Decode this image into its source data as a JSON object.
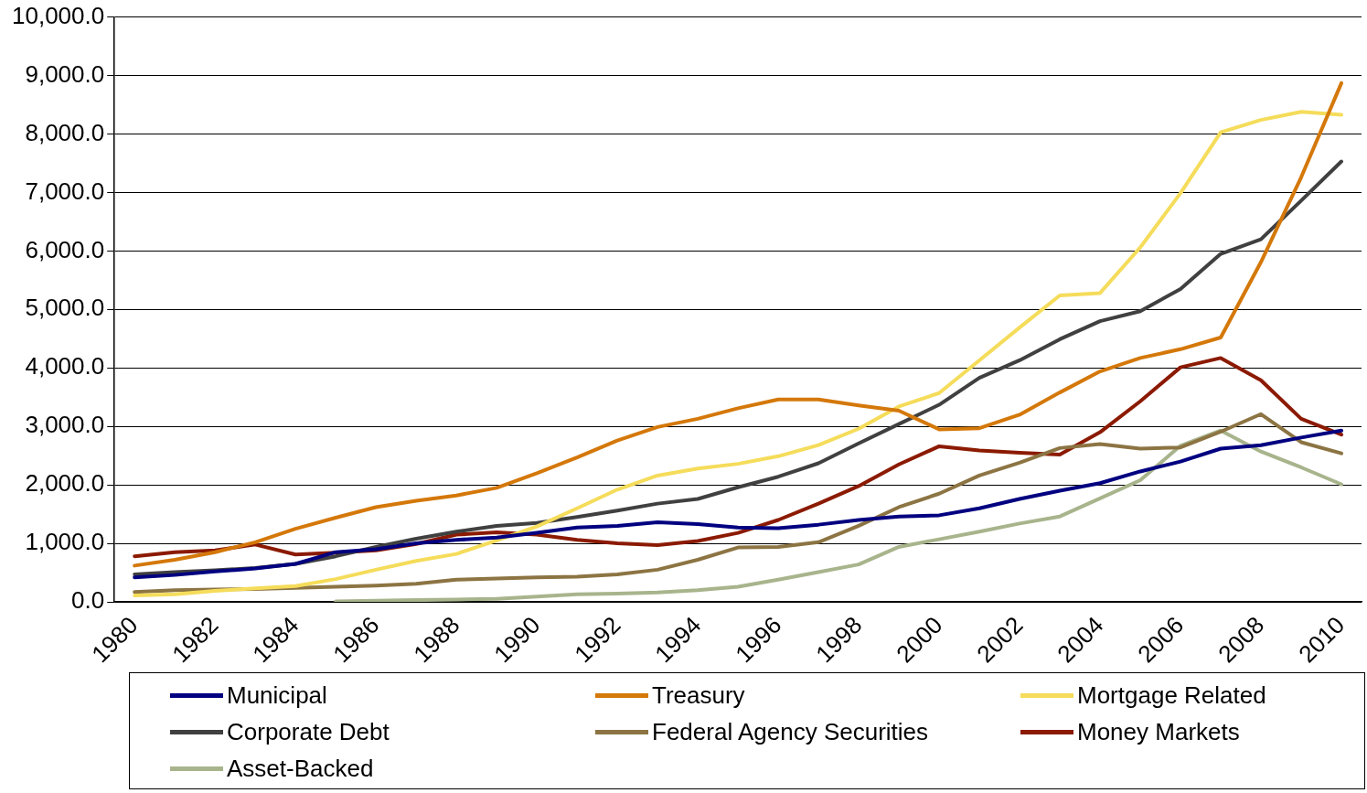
{
  "chart_data": {
    "type": "line",
    "categories": [
      "1980",
      null,
      "1982",
      null,
      "1984",
      null,
      "1986",
      null,
      "1988",
      null,
      "1990",
      null,
      "1992",
      null,
      "1994",
      null,
      "1996",
      null,
      "1998",
      null,
      "2000",
      null,
      "2002",
      null,
      "2004",
      null,
      "2006",
      null,
      "2008",
      null,
      "2010"
    ],
    "ylim": [
      0,
      10000
    ],
    "yticks": [
      {
        "value": 0,
        "label": "0.0"
      },
      {
        "value": 1000,
        "label": "1,000.0"
      },
      {
        "value": 2000,
        "label": "2,000.0"
      },
      {
        "value": 3000,
        "label": "3,000.0"
      },
      {
        "value": 4000,
        "label": "4,000.0"
      },
      {
        "value": 5000,
        "label": "5,000.0"
      },
      {
        "value": 6000,
        "label": "6,000.0"
      },
      {
        "value": 7000,
        "label": "7,000.0"
      },
      {
        "value": 8000,
        "label": "8,000.0"
      },
      {
        "value": 9000,
        "label": "9,000.0"
      },
      {
        "value": 10000,
        "label": "10,000.0"
      }
    ],
    "grid": "y",
    "legend": "bottom",
    "marker": "none",
    "line_style": "solid",
    "series": [
      {
        "name": "Municipal",
        "color": "#000080",
        "values": [
          420,
          460,
          520,
          570,
          650,
          850,
          900,
          1000,
          1060,
          1100,
          1180,
          1270,
          1300,
          1360,
          1330,
          1270,
          1260,
          1320,
          1400,
          1460,
          1480,
          1600,
          1760,
          1900,
          2030,
          2230,
          2400,
          2620,
          2680,
          2810,
          2930
        ]
      },
      {
        "name": "Treasury",
        "color": "#d4780a",
        "values": [
          620,
          720,
          850,
          1020,
          1250,
          1440,
          1620,
          1730,
          1820,
          1950,
          2200,
          2470,
          2760,
          2990,
          3130,
          3310,
          3460,
          3460,
          3360,
          3270,
          2950,
          2970,
          3200,
          3580,
          3940,
          4170,
          4320,
          4520,
          5810,
          7260,
          8870
        ]
      },
      {
        "name": "Mortgage Related",
        "color": "#f5dc5a",
        "values": [
          110,
          130,
          190,
          230,
          270,
          390,
          550,
          700,
          820,
          1050,
          1290,
          1600,
          1920,
          2160,
          2280,
          2360,
          2490,
          2680,
          2960,
          3340,
          3570,
          4130,
          4690,
          5240,
          5280,
          6060,
          6990,
          8030,
          8240,
          8380,
          8330
        ]
      },
      {
        "name": "Corporate Debt",
        "color": "#404040",
        "values": [
          470,
          510,
          540,
          580,
          650,
          780,
          940,
          1080,
          1200,
          1300,
          1350,
          1450,
          1560,
          1680,
          1760,
          1960,
          2140,
          2370,
          2710,
          3040,
          3370,
          3830,
          4130,
          4490,
          4800,
          4970,
          5350,
          5950,
          6200,
          6860,
          7530
        ]
      },
      {
        "name": "Federal Agency Securities",
        "color": "#8c7443",
        "values": [
          170,
          200,
          210,
          220,
          240,
          260,
          280,
          310,
          380,
          400,
          420,
          430,
          470,
          550,
          720,
          930,
          940,
          1020,
          1300,
          1620,
          1850,
          2160,
          2380,
          2630,
          2700,
          2620,
          2640,
          2910,
          3210,
          2730,
          2540
        ]
      },
      {
        "name": "Money Markets",
        "color": "#8b1a00",
        "values": [
          780,
          850,
          880,
          980,
          810,
          840,
          880,
          990,
          1150,
          1190,
          1150,
          1060,
          1000,
          970,
          1040,
          1180,
          1400,
          1680,
          1980,
          2350,
          2660,
          2590,
          2550,
          2520,
          2900,
          3430,
          4010,
          4170,
          3790,
          3130,
          2860
        ]
      },
      {
        "name": "Asset-Backed",
        "color": "#a8b48c",
        "values": [
          null,
          null,
          null,
          null,
          null,
          10,
          20,
          30,
          40,
          50,
          90,
          130,
          140,
          160,
          200,
          260,
          380,
          510,
          640,
          940,
          1070,
          1200,
          1340,
          1460,
          1770,
          2080,
          2670,
          2930,
          2570,
          2300,
          2010
        ]
      }
    ]
  }
}
